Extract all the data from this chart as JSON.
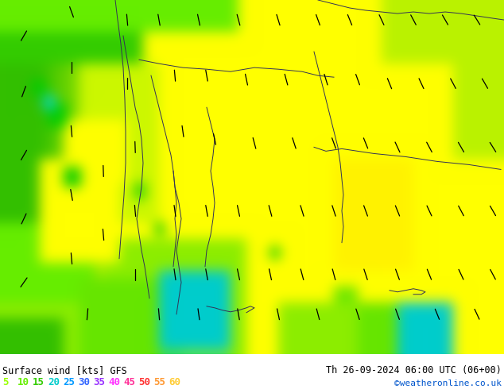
{
  "title_left": "Surface wind [kts] GFS",
  "title_right": "Th 26-09-2024 06:00 UTC (06+00)",
  "credit": "©weatheronline.co.uk",
  "legend_values": [
    5,
    10,
    15,
    20,
    25,
    30,
    35,
    40,
    45,
    50,
    55,
    60
  ],
  "legend_colors": [
    "#99ff00",
    "#66ee00",
    "#33cc00",
    "#00cccc",
    "#0099ff",
    "#3366ff",
    "#9933ff",
    "#ff33ff",
    "#ff3399",
    "#ff3333",
    "#ff9933",
    "#ffcc33"
  ],
  "bg_color": "#ffffff",
  "figsize": [
    6.34,
    4.9
  ],
  "dpi": 100,
  "map_bg": "#ffff00",
  "colors": {
    "yellow": "#ffff00",
    "lime": "#aaee00",
    "green_bright": "#66dd00",
    "green_dark": "#22bb00",
    "green_mid": "#33cc00",
    "yellow_green": "#ccee00",
    "orange_yellow": "#ffdd00",
    "cyan_light": "#00ddcc",
    "cyan_dark": "#00bbaa",
    "teal": "#00aaaa"
  }
}
